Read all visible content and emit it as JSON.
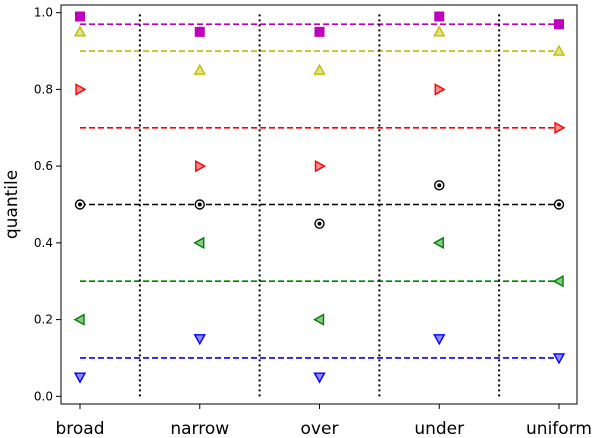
{
  "chart_data": {
    "type": "scatter",
    "title": "",
    "xlabel": "",
    "ylabel": "quantile",
    "categories": [
      "broad",
      "narrow",
      "over",
      "under",
      "uniform"
    ],
    "ylim": [
      -0.02,
      1.02
    ],
    "yticks": [
      "0.0",
      "0.2",
      "0.4",
      "0.6",
      "0.8",
      "1.0"
    ],
    "grid": false,
    "legend": "none",
    "reference_lines": [
      {
        "y": 0.97,
        "color": "#bf00bf"
      },
      {
        "y": 0.9,
        "color": "#bfbf00"
      },
      {
        "y": 0.7,
        "color": "#ff0000"
      },
      {
        "y": 0.5,
        "color": "#000000"
      },
      {
        "y": 0.3,
        "color": "#008000"
      },
      {
        "y": 0.1,
        "color": "#0000ff"
      }
    ],
    "separators_at": [
      0.5,
      1.5,
      2.5,
      3.5
    ],
    "series": [
      {
        "marker": "square",
        "color": "#bf00bf",
        "values": [
          0.99,
          0.95,
          0.95,
          0.99,
          0.97
        ]
      },
      {
        "marker": "triangle-up",
        "color": "#bfbf00",
        "values": [
          0.95,
          0.85,
          0.85,
          0.95,
          0.9
        ]
      },
      {
        "marker": "triangle-right",
        "color": "#ff0000",
        "values": [
          0.8,
          0.6,
          0.6,
          0.8,
          0.7
        ]
      },
      {
        "marker": "circle-dot",
        "color": "#000000",
        "values": [
          0.5,
          0.5,
          0.45,
          0.55,
          0.5
        ]
      },
      {
        "marker": "triangle-left",
        "color": "#008000",
        "values": [
          0.2,
          0.4,
          0.2,
          0.4,
          0.3
        ]
      },
      {
        "marker": "triangle-down",
        "color": "#0000ff",
        "values": [
          0.05,
          0.15,
          0.05,
          0.15,
          0.1
        ]
      }
    ]
  }
}
